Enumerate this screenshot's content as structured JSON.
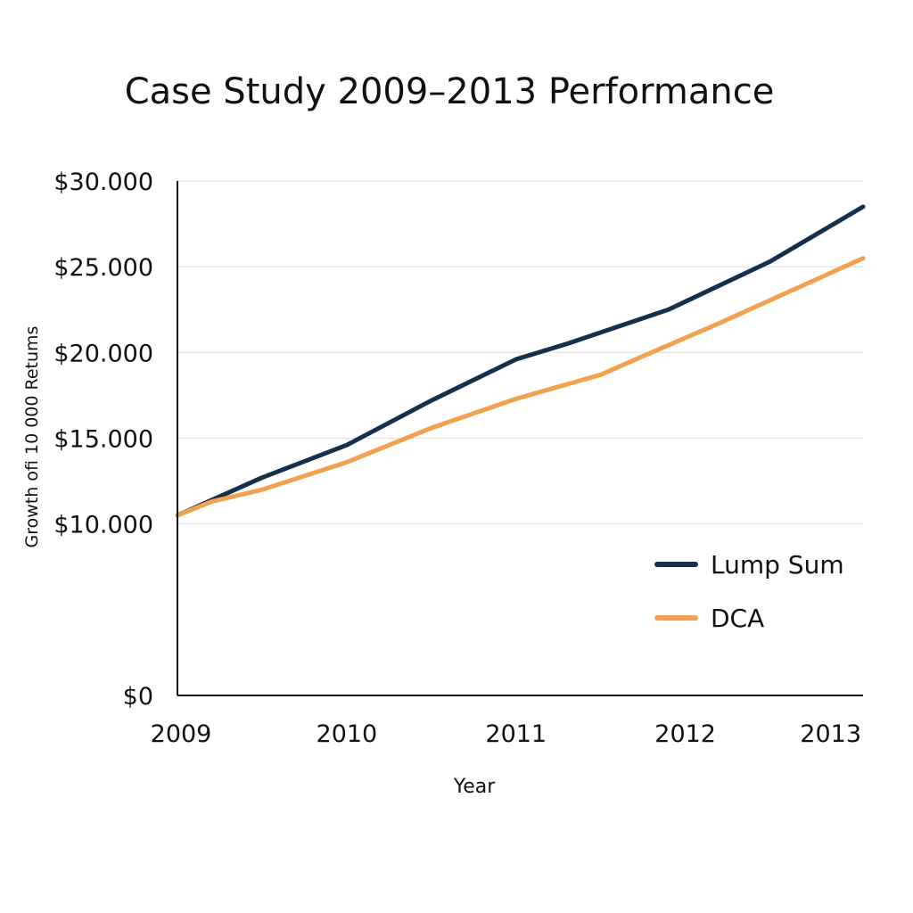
{
  "chart_data": {
    "type": "line",
    "title": "Case Study 2009–2013 Performance",
    "xlabel": "Year",
    "ylabel": "Growth ofi 10 000 Retums",
    "ylim": [
      0,
      30000
    ],
    "xlim": [
      2009,
      2013.05
    ],
    "y_ticks": [
      {
        "value": 0,
        "label": "$0"
      },
      {
        "value": 10000,
        "label": "$10.000"
      },
      {
        "value": 15000,
        "label": "$15.000"
      },
      {
        "value": 20000,
        "label": "$20.000"
      },
      {
        "value": 25000,
        "label": "$25.000"
      },
      {
        "value": 30000,
        "label": "$30.000"
      }
    ],
    "x_ticks": [
      {
        "value": 2009,
        "label": "2009"
      },
      {
        "value": 2010,
        "label": "2010"
      },
      {
        "value": 2011,
        "label": "2011"
      },
      {
        "value": 2012,
        "label": "2012"
      },
      {
        "value": 2013,
        "label": "2013"
      }
    ],
    "grid": true,
    "legend_position": "right",
    "series": [
      {
        "name": "Lump Sum",
        "color": "#14304d",
        "x": [
          2009,
          2009.5,
          2010,
          2010.5,
          2011,
          2011.3,
          2011.9,
          2012.5,
          2013.05
        ],
        "values": [
          10500,
          12700,
          14600,
          17200,
          19600,
          20500,
          22500,
          25300,
          28500
        ]
      },
      {
        "name": "DCA",
        "color": "#f2a24f",
        "x": [
          2009,
          2009.2,
          2009.5,
          2010,
          2010.5,
          2011,
          2011.5,
          2011.8,
          2012.2,
          2013.05
        ],
        "values": [
          10500,
          11300,
          12000,
          13600,
          15600,
          17300,
          18700,
          20000,
          21700,
          25500
        ]
      }
    ]
  }
}
